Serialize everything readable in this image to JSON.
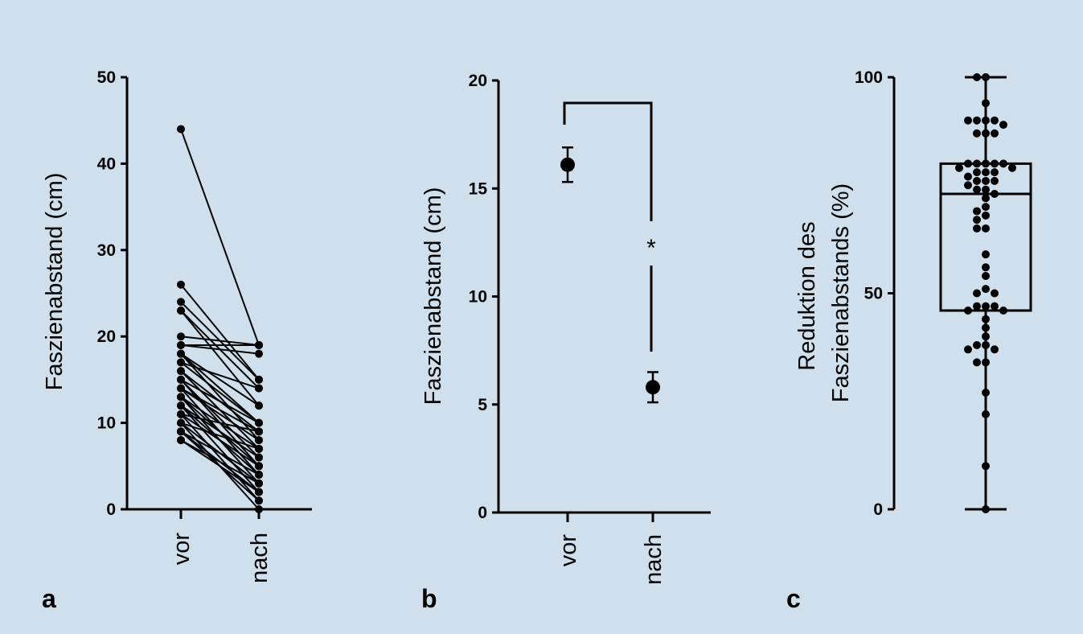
{
  "panel_labels": [
    "a",
    "b",
    "c"
  ],
  "chart_data": [
    {
      "type": "line",
      "panel": "a",
      "ylabel": "Faszienabstand (cm)",
      "categories": [
        "vor",
        "nach"
      ],
      "ylim": [
        0,
        50
      ],
      "yticks": [
        0,
        10,
        20,
        30,
        40,
        50
      ],
      "pairs": [
        [
          44,
          19
        ],
        [
          26,
          15
        ],
        [
          24,
          15
        ],
        [
          23,
          12
        ],
        [
          23,
          14
        ],
        [
          20,
          19
        ],
        [
          19,
          19
        ],
        [
          19,
          18
        ],
        [
          18,
          12
        ],
        [
          18,
          10
        ],
        [
          18,
          8
        ],
        [
          17,
          14
        ],
        [
          17,
          10
        ],
        [
          16,
          9
        ],
        [
          16,
          7
        ],
        [
          15,
          10
        ],
        [
          15,
          6
        ],
        [
          15,
          5
        ],
        [
          14,
          9
        ],
        [
          14,
          8
        ],
        [
          14,
          4
        ],
        [
          13,
          7
        ],
        [
          13,
          3
        ],
        [
          13,
          5
        ],
        [
          12,
          6
        ],
        [
          12,
          2
        ],
        [
          12,
          4
        ],
        [
          11,
          9
        ],
        [
          11,
          5
        ],
        [
          11,
          1
        ],
        [
          10,
          7
        ],
        [
          10,
          3
        ],
        [
          10,
          0
        ],
        [
          9,
          4
        ],
        [
          9,
          2
        ],
        [
          9,
          1
        ],
        [
          8,
          3
        ],
        [
          8,
          2
        ]
      ]
    },
    {
      "type": "scatter",
      "panel": "b",
      "ylabel": "Faszienabstand (cm)",
      "categories": [
        "vor",
        "nach"
      ],
      "ylim": [
        0,
        20
      ],
      "yticks": [
        0,
        5,
        10,
        15,
        20
      ],
      "means": [
        16.1,
        5.8
      ],
      "error_low": [
        15.3,
        5.1
      ],
      "error_high": [
        16.9,
        6.5
      ],
      "significance_label": "*"
    },
    {
      "type": "box",
      "panel": "c",
      "ylabel_lines": [
        "Reduktion des",
        "Faszienabstands (%)"
      ],
      "ylim": [
        0,
        100
      ],
      "yticks": [
        0,
        50,
        100
      ],
      "box": {
        "min": 0,
        "q1": 46,
        "median": 73,
        "q3": 80,
        "max": 100
      },
      "points": [
        100,
        100,
        94,
        90,
        90,
        90,
        90,
        89,
        87,
        87,
        87,
        80,
        80,
        80,
        80,
        80,
        79,
        79,
        78,
        78,
        78,
        77,
        76,
        76,
        76,
        75,
        74,
        74,
        73,
        72,
        70,
        69,
        68,
        67,
        65,
        65,
        59,
        56,
        54,
        51,
        50,
        50,
        47,
        47,
        47,
        46,
        46,
        44,
        42,
        40,
        38,
        38,
        37,
        37,
        34,
        34,
        27,
        22,
        10,
        0
      ]
    }
  ]
}
